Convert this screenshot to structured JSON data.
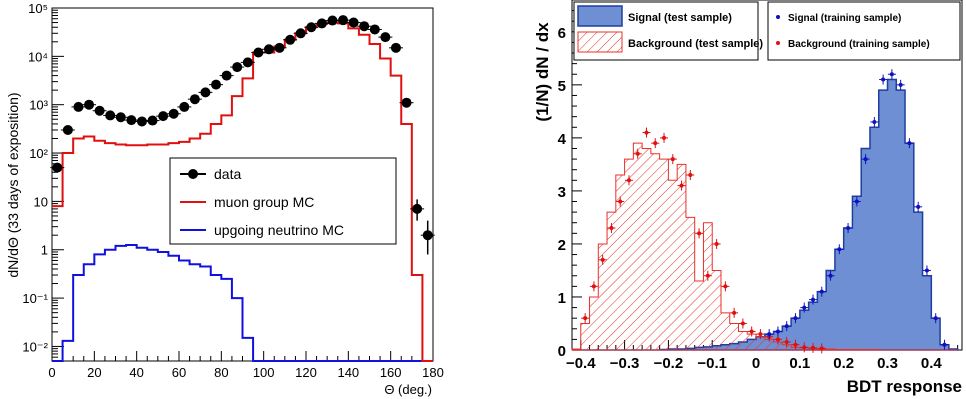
{
  "chart_data": [
    {
      "type": "step-histogram",
      "xlabel": "Θ (deg.)",
      "ylabel": "dN/dΘ (33 days of exposition)",
      "xlim": [
        0,
        180
      ],
      "ylim": [
        0.005,
        100000
      ],
      "yscale": "log",
      "x_ticks": [
        "0",
        "20",
        "40",
        "60",
        "80",
        "100",
        "120",
        "140",
        "160",
        "180"
      ],
      "y_ticks": [
        "10⁻²",
        "10⁻¹",
        "1",
        "10",
        "10²",
        "10³",
        "10⁴",
        "10⁵"
      ],
      "legend": {
        "position": "center-right",
        "entries": [
          "data",
          "muon group MC",
          "upgoing neutrino MC"
        ]
      },
      "colors": {
        "data": "#000000",
        "mu": "#e01010",
        "nu": "#1010e0"
      },
      "bin_edges": [
        0,
        5,
        10,
        15,
        20,
        25,
        30,
        35,
        40,
        45,
        50,
        55,
        60,
        65,
        70,
        75,
        80,
        85,
        90,
        95,
        100,
        105,
        110,
        115,
        120,
        125,
        130,
        135,
        140,
        145,
        150,
        155,
        160,
        165,
        170,
        175,
        180
      ],
      "series": [
        {
          "name": "data",
          "style": "points",
          "x": [
            2.5,
            7.5,
            12.5,
            17.5,
            22.5,
            27.5,
            32.5,
            37.5,
            42.5,
            47.5,
            52.5,
            57.5,
            62.5,
            67.5,
            72.5,
            77.5,
            82.5,
            87.5,
            92.5,
            97.5,
            102.5,
            107.5,
            112.5,
            117.5,
            122.5,
            127.5,
            132.5,
            137.5,
            142.5,
            147.5,
            152.5,
            157.5,
            162.5,
            167.5,
            172.5,
            177.5
          ],
          "y": [
            50,
            300,
            900,
            1000,
            750,
            600,
            550,
            480,
            450,
            470,
            580,
            650,
            900,
            1300,
            1800,
            2600,
            4000,
            6000,
            7500,
            12000,
            14000,
            15000,
            22000,
            30000,
            40000,
            48000,
            55000,
            56000,
            50000,
            42000,
            36000,
            25000,
            15000,
            1100,
            7,
            2
          ],
          "yerr_low": [
            null,
            null,
            null,
            null,
            null,
            null,
            null,
            null,
            null,
            null,
            null,
            null,
            null,
            null,
            null,
            null,
            null,
            null,
            null,
            null,
            null,
            null,
            null,
            null,
            null,
            null,
            null,
            null,
            null,
            null,
            null,
            null,
            null,
            null,
            4,
            0.8
          ],
          "yerr_high": [
            null,
            null,
            null,
            null,
            null,
            null,
            null,
            null,
            null,
            null,
            null,
            null,
            null,
            null,
            null,
            null,
            null,
            null,
            null,
            null,
            null,
            null,
            null,
            null,
            null,
            null,
            null,
            null,
            null,
            null,
            null,
            null,
            null,
            null,
            11,
            4
          ]
        },
        {
          "name": "muon group MC",
          "style": "step",
          "values": [
            8,
            100,
            200,
            220,
            180,
            160,
            150,
            145,
            145,
            150,
            150,
            160,
            170,
            200,
            250,
            400,
            600,
            1500,
            3500,
            12000,
            12000,
            16000,
            22000,
            30000,
            40000,
            47000,
            50000,
            48000,
            38000,
            28000,
            18000,
            9000,
            4000,
            400,
            0.3,
            0.005
          ]
        },
        {
          "name": "upgoing neutrino MC",
          "style": "step",
          "values": [
            0.005,
            0.013,
            0.3,
            0.5,
            0.8,
            1.0,
            1.2,
            1.25,
            1.1,
            1.0,
            0.9,
            0.75,
            0.6,
            0.5,
            0.45,
            0.3,
            0.25,
            0.1,
            0.015,
            0.005,
            0.005,
            0.005,
            0.005,
            0.005,
            0.005,
            0.005,
            0.005,
            0.005,
            0.005,
            0.005,
            0.005,
            0.005,
            0.005,
            0.005,
            0.005,
            0.005
          ]
        }
      ]
    },
    {
      "type": "step-histogram",
      "xlabel": "BDT response",
      "ylabel": "(1/N) dN / dx",
      "xlim": [
        -0.42,
        0.47
      ],
      "ylim": [
        0,
        6.6
      ],
      "x_ticks": [
        "−0.4",
        "−0.3",
        "−0.2",
        "−0.1",
        "0",
        "0.1",
        "0.2",
        "0.3",
        "0.4"
      ],
      "y_ticks": [
        "0",
        "1",
        "2",
        "3",
        "4",
        "5",
        "6"
      ],
      "legend": {
        "position": "top",
        "entries": [
          "Signal (test sample)",
          "Background (test sample)",
          "Signal (training sample)",
          "Background (training sample)"
        ]
      },
      "colors": {
        "signal_fill": "#6e8fd4",
        "signal_line": "#1f3f9e",
        "background_line": "#e8302a",
        "signal_points": "#1010c0",
        "background_points": "#e01010"
      },
      "bin_edges": [
        -0.42,
        -0.4,
        -0.38,
        -0.36,
        -0.34,
        -0.32,
        -0.3,
        -0.28,
        -0.26,
        -0.24,
        -0.22,
        -0.2,
        -0.18,
        -0.16,
        -0.14,
        -0.12,
        -0.1,
        -0.08,
        -0.06,
        -0.04,
        -0.02,
        0.0,
        0.02,
        0.04,
        0.06,
        0.08,
        0.1,
        0.12,
        0.14,
        0.16,
        0.18,
        0.2,
        0.22,
        0.24,
        0.26,
        0.28,
        0.3,
        0.32,
        0.34,
        0.36,
        0.38,
        0.4,
        0.42,
        0.44,
        0.46
      ],
      "series": [
        {
          "name": "Background (test sample)",
          "style": "hatched-step",
          "values": [
            0.02,
            0.5,
            1.0,
            2.0,
            2.6,
            3.3,
            3.6,
            3.9,
            3.8,
            3.7,
            3.6,
            3.2,
            3.5,
            2.5,
            1.3,
            2.4,
            1.5,
            0.7,
            0.5,
            0.35,
            0.3,
            0.25,
            0.2,
            0.15,
            0.1,
            0.05,
            0.04,
            0.03,
            0.02,
            0.02,
            0.01,
            0.01,
            0.01,
            0.01,
            0.01,
            0,
            0,
            0,
            0,
            0,
            0,
            0,
            0,
            0
          ]
        },
        {
          "name": "Signal (test sample)",
          "style": "filled-step",
          "values": [
            0,
            0,
            0,
            0,
            0,
            0,
            0,
            0,
            0,
            0,
            0.01,
            0.02,
            0.02,
            0.03,
            0.05,
            0.06,
            0.08,
            0.1,
            0.12,
            0.15,
            0.2,
            0.25,
            0.3,
            0.35,
            0.45,
            0.6,
            0.75,
            0.9,
            1.1,
            1.5,
            1.9,
            2.3,
            2.9,
            3.8,
            4.2,
            4.9,
            5.1,
            4.9,
            3.9,
            2.6,
            1.4,
            0.6,
            0.1,
            0.02
          ]
        },
        {
          "name": "Background (training sample)",
          "style": "points",
          "x": [
            -0.39,
            -0.37,
            -0.35,
            -0.33,
            -0.31,
            -0.29,
            -0.27,
            -0.25,
            -0.23,
            -0.21,
            -0.19,
            -0.17,
            -0.15,
            -0.13,
            -0.11,
            -0.09,
            -0.07,
            -0.05,
            -0.03,
            -0.01,
            0.01,
            0.03,
            0.05,
            0.07,
            0.09,
            0.11,
            0.13,
            0.15
          ],
          "y": [
            0.6,
            1.2,
            1.7,
            2.3,
            2.8,
            3.2,
            3.7,
            4.1,
            3.9,
            4.0,
            3.6,
            3.1,
            3.3,
            2.2,
            1.4,
            2.0,
            1.2,
            0.7,
            0.5,
            0.35,
            0.3,
            0.25,
            0.2,
            0.15,
            0.1,
            0.05,
            0.04,
            0.03
          ]
        },
        {
          "name": "Signal (training sample)",
          "style": "points",
          "x": [
            0.03,
            0.05,
            0.07,
            0.09,
            0.11,
            0.13,
            0.15,
            0.17,
            0.19,
            0.21,
            0.23,
            0.25,
            0.27,
            0.29,
            0.31,
            0.33,
            0.35,
            0.37,
            0.39,
            0.41,
            0.43
          ],
          "y": [
            0.3,
            0.35,
            0.45,
            0.6,
            0.8,
            0.95,
            1.1,
            1.4,
            1.9,
            2.3,
            2.8,
            3.6,
            4.3,
            5.1,
            5.2,
            5.0,
            3.9,
            2.7,
            1.5,
            0.6,
            0.1
          ]
        }
      ]
    }
  ]
}
